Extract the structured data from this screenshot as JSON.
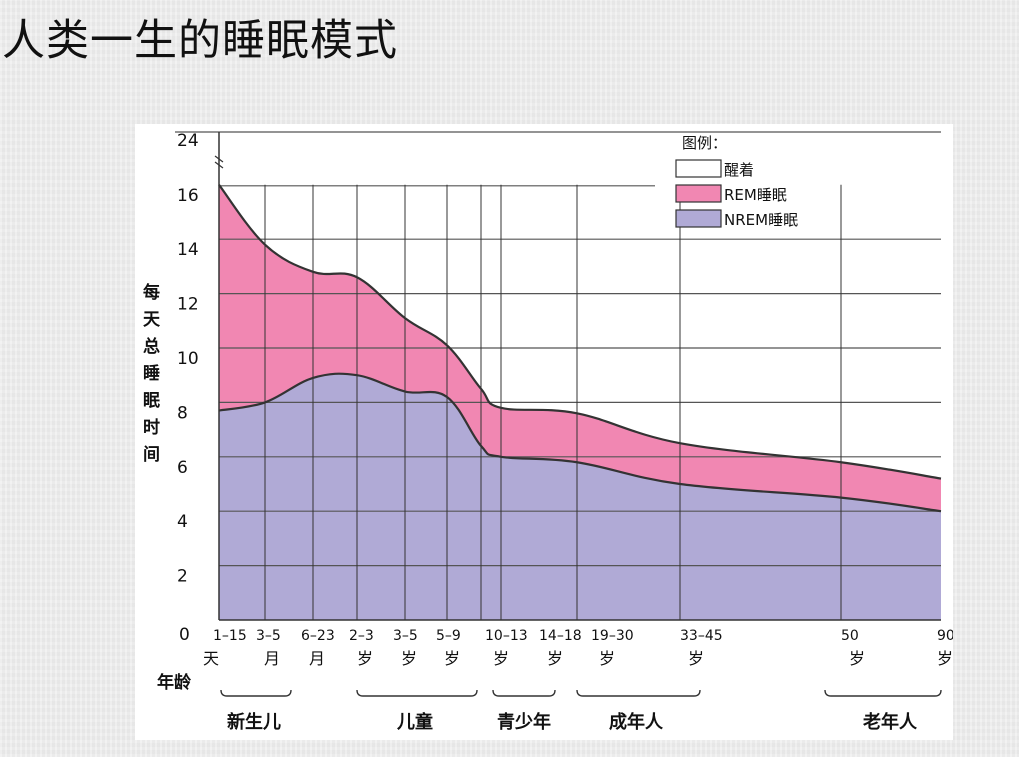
{
  "page": {
    "title": "人类一生的睡眠模式"
  },
  "chart_data": {
    "type": "area",
    "title": "",
    "ylabel": "每天总睡眠时间",
    "xlabel": "年龄",
    "y_ticks": [
      0,
      2,
      4,
      6,
      8,
      10,
      12,
      14,
      16,
      24
    ],
    "y_axis_break": {
      "from": 16,
      "to": 24
    },
    "ylim": [
      0,
      24
    ],
    "categories": [
      {
        "range": "1–15",
        "unit": "天"
      },
      {
        "range": "3–5",
        "unit": "月"
      },
      {
        "range": "6–23",
        "unit": "月"
      },
      {
        "range": "2–3",
        "unit": "岁"
      },
      {
        "range": "3–5",
        "unit": "岁"
      },
      {
        "range": "5–9",
        "unit": "岁"
      },
      {
        "range": "10–13",
        "unit": "岁"
      },
      {
        "range": "14–18",
        "unit": "岁"
      },
      {
        "range": "19–30",
        "unit": "岁"
      },
      {
        "range": "33–45",
        "unit": "岁"
      },
      {
        "range": "50",
        "unit": "岁"
      },
      {
        "range": "90",
        "unit": "岁"
      }
    ],
    "series": [
      {
        "name": "NREM睡眠",
        "color": "#b0aad6",
        "values": [
          7.7,
          8.0,
          8.9,
          9.0,
          8.4,
          8.2,
          6.4,
          6.0,
          5.8,
          5.0,
          4.5,
          4.0
        ]
      },
      {
        "name": "REM睡眠",
        "color": "#f187b2",
        "values": [
          8.3,
          5.8,
          3.9,
          3.6,
          2.7,
          1.9,
          2.1,
          1.8,
          1.8,
          1.5,
          1.3,
          1.2
        ]
      },
      {
        "name": "醒着",
        "color": "#ffffff"
      }
    ],
    "total_sleep": [
      16.0,
      13.8,
      12.8,
      12.6,
      11.1,
      10.1,
      8.5,
      7.8,
      7.6,
      6.5,
      5.8,
      5.2
    ],
    "legend": {
      "title": "图例：",
      "position": "top-right"
    },
    "groups": [
      {
        "label": "新生儿"
      },
      {
        "label": "儿童"
      },
      {
        "label": "青少年"
      },
      {
        "label": "成年人"
      },
      {
        "label": "老年人"
      }
    ],
    "grid": true
  }
}
